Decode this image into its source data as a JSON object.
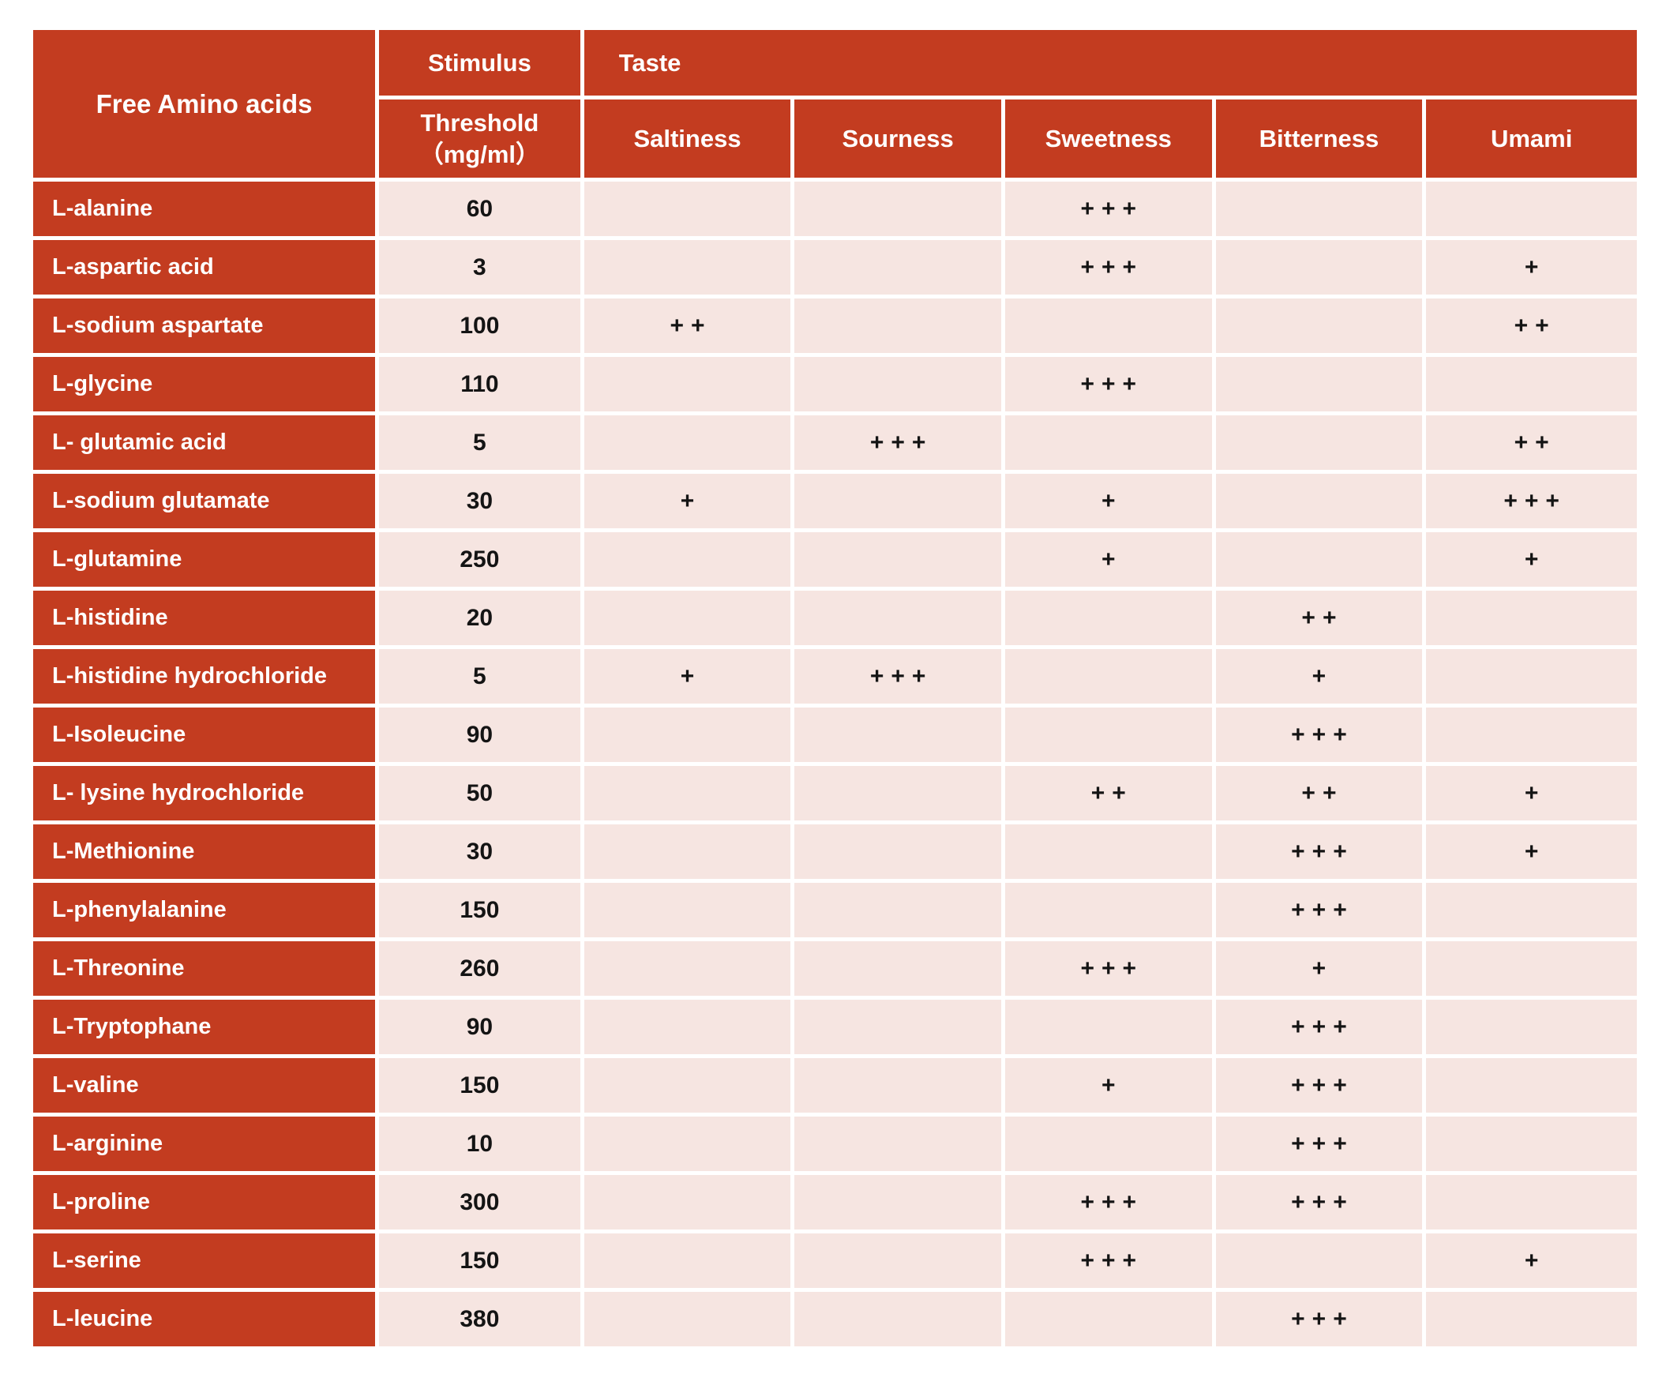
{
  "table": {
    "header": {
      "amino_col_label": "Free Amino acids",
      "stimulus_label": "Stimulus",
      "threshold_line1": "Threshold",
      "threshold_line2": "（mg/ml）",
      "taste_group_label": "Taste",
      "taste_columns": [
        "Saltiness",
        "Sourness",
        "Sweetness",
        "Bitterness",
        "Umami"
      ]
    },
    "rows": [
      {
        "name": "L-alanine",
        "threshold": "60",
        "saltiness": "",
        "sourness": "",
        "sweetness": "+++",
        "bitterness": "",
        "umami": ""
      },
      {
        "name": "L-aspartic acid",
        "threshold": "3",
        "saltiness": "",
        "sourness": "",
        "sweetness": "+++",
        "bitterness": "",
        "umami": "+"
      },
      {
        "name": "L-sodium aspartate",
        "threshold": "100",
        "saltiness": "++",
        "sourness": "",
        "sweetness": "",
        "bitterness": "",
        "umami": "++"
      },
      {
        "name": "L-glycine",
        "threshold": "110",
        "saltiness": "",
        "sourness": "",
        "sweetness": "+++",
        "bitterness": "",
        "umami": ""
      },
      {
        "name": "L- glutamic acid",
        "threshold": "5",
        "saltiness": "",
        "sourness": "+++",
        "sweetness": "",
        "bitterness": "",
        "umami": "++"
      },
      {
        "name": "L-sodium glutamate",
        "threshold": "30",
        "saltiness": "+",
        "sourness": "",
        "sweetness": "+",
        "bitterness": "",
        "umami": "+++"
      },
      {
        "name": "L-glutamine",
        "threshold": "250",
        "saltiness": "",
        "sourness": "",
        "sweetness": "+",
        "bitterness": "",
        "umami": "+"
      },
      {
        "name": "L-histidine",
        "threshold": "20",
        "saltiness": "",
        "sourness": "",
        "sweetness": "",
        "bitterness": "++",
        "umami": ""
      },
      {
        "name": "L-histidine hydrochloride",
        "threshold": "5",
        "saltiness": "+",
        "sourness": "+++",
        "sweetness": "",
        "bitterness": "+",
        "umami": ""
      },
      {
        "name": "L-Isoleucine",
        "threshold": "90",
        "saltiness": "",
        "sourness": "",
        "sweetness": "",
        "bitterness": "+++",
        "umami": ""
      },
      {
        "name": "L- lysine hydrochloride",
        "threshold": "50",
        "saltiness": "",
        "sourness": "",
        "sweetness": "++",
        "bitterness": "++",
        "umami": "+"
      },
      {
        "name": "L-Methionine",
        "threshold": "30",
        "saltiness": "",
        "sourness": "",
        "sweetness": "",
        "bitterness": "+++",
        "umami": "+"
      },
      {
        "name": "L-phenylalanine",
        "threshold": "150",
        "saltiness": "",
        "sourness": "",
        "sweetness": "",
        "bitterness": "+++",
        "umami": ""
      },
      {
        "name": "L-Threonine",
        "threshold": "260",
        "saltiness": "",
        "sourness": "",
        "sweetness": "+++",
        "bitterness": "+",
        "umami": ""
      },
      {
        "name": "L-Tryptophane",
        "threshold": "90",
        "saltiness": "",
        "sourness": "",
        "sweetness": "",
        "bitterness": "+++",
        "umami": ""
      },
      {
        "name": "L-valine",
        "threshold": "150",
        "saltiness": "",
        "sourness": "",
        "sweetness": "+",
        "bitterness": "+++",
        "umami": ""
      },
      {
        "name": "L-arginine",
        "threshold": "10",
        "saltiness": "",
        "sourness": "",
        "sweetness": "",
        "bitterness": "+++",
        "umami": ""
      },
      {
        "name": "L-proline",
        "threshold": "300",
        "saltiness": "",
        "sourness": "",
        "sweetness": "+++",
        "bitterness": "+++",
        "umami": ""
      },
      {
        "name": "L-serine",
        "threshold": "150",
        "saltiness": "",
        "sourness": "",
        "sweetness": "+++",
        "bitterness": "",
        "umami": "+"
      },
      {
        "name": "L-leucine",
        "threshold": "380",
        "saltiness": "",
        "sourness": "",
        "sweetness": "",
        "bitterness": "+++",
        "umami": ""
      }
    ]
  },
  "colors": {
    "header_red": "#C33C20",
    "row_pink": "#F6E5E1",
    "mark_color": "#141414",
    "header_text": "#FFFFFF"
  }
}
